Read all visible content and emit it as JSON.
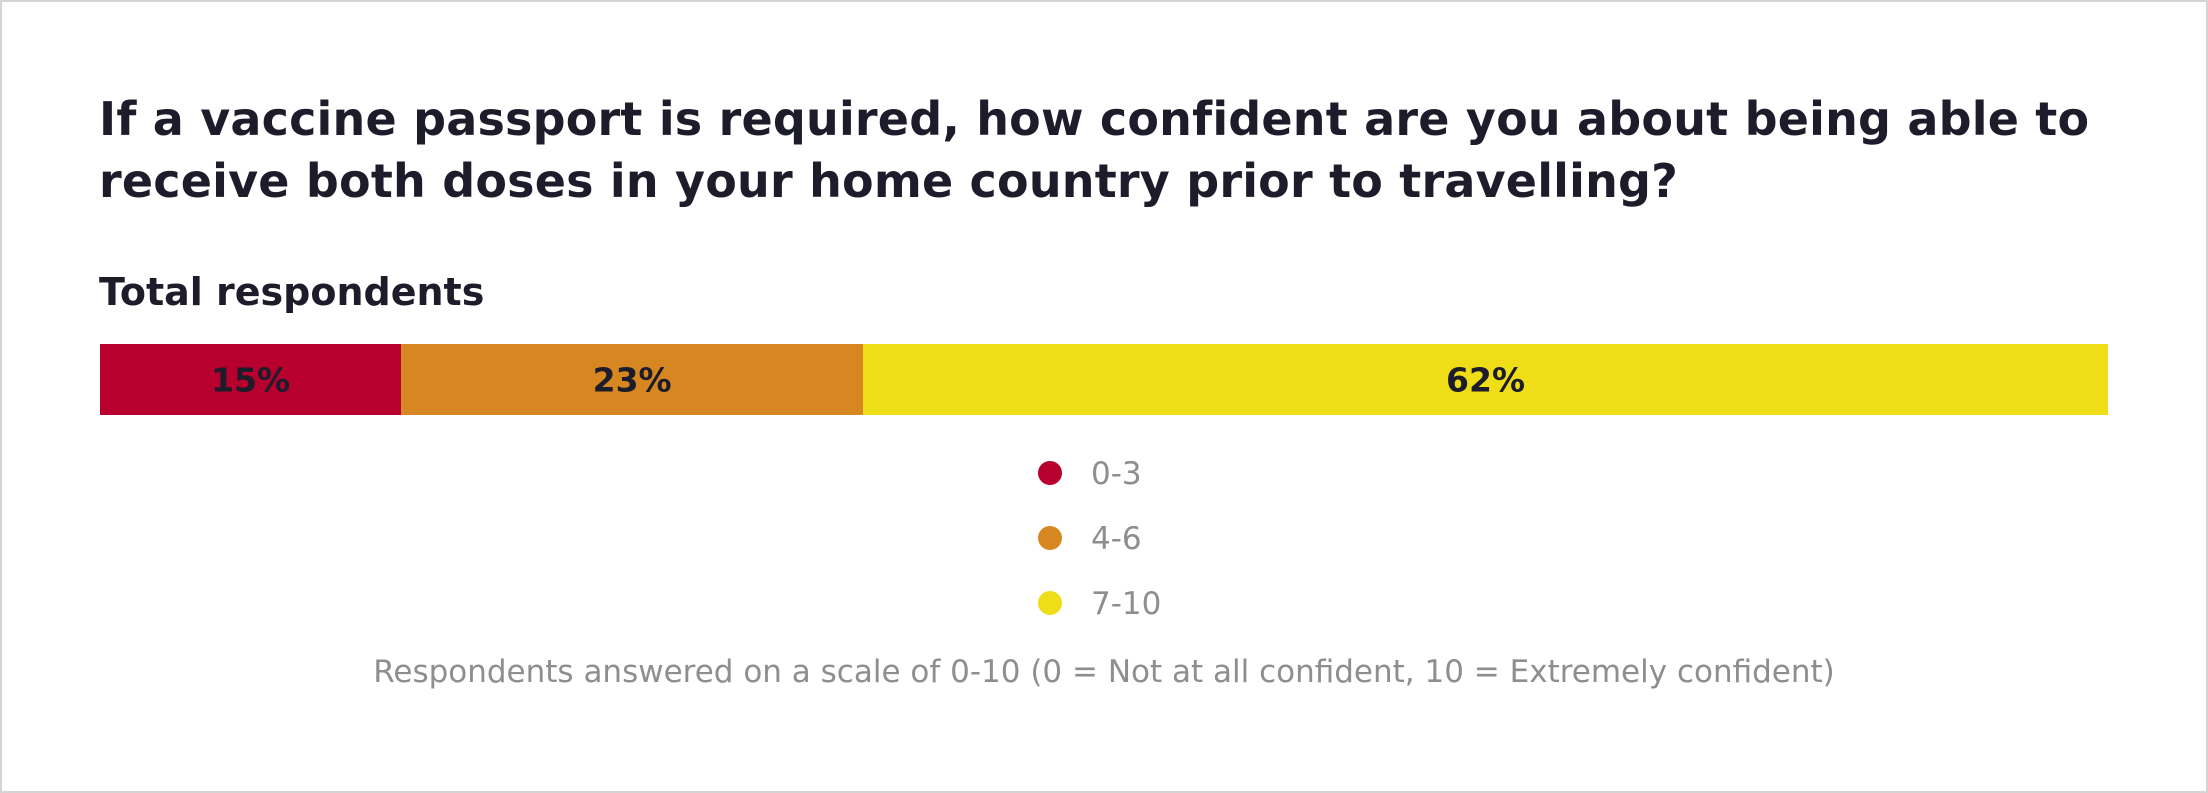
{
  "chart_data": {
    "type": "bar",
    "orientation": "horizontal-stacked",
    "title": "If a vaccine passport is required, how confident are you about being able to receive both doses in your home country prior to travelling?",
    "subtitle": "Total respondents",
    "categories": [
      "Total respondents"
    ],
    "series": [
      {
        "name": "0-3",
        "values": [
          15
        ],
        "label": "15%",
        "color": "#b8002e"
      },
      {
        "name": "4-6",
        "values": [
          23
        ],
        "label": "23%",
        "color": "#d68722"
      },
      {
        "name": "7-10",
        "values": [
          62
        ],
        "label": "62%",
        "color": "#eedd17"
      }
    ],
    "xlim": [
      0,
      100
    ],
    "legend_position": "bottom-center",
    "grid": false,
    "note": "Respondents answered on a scale of 0-10 (0 = Not at all confident, 10 = Extremely confident)"
  }
}
